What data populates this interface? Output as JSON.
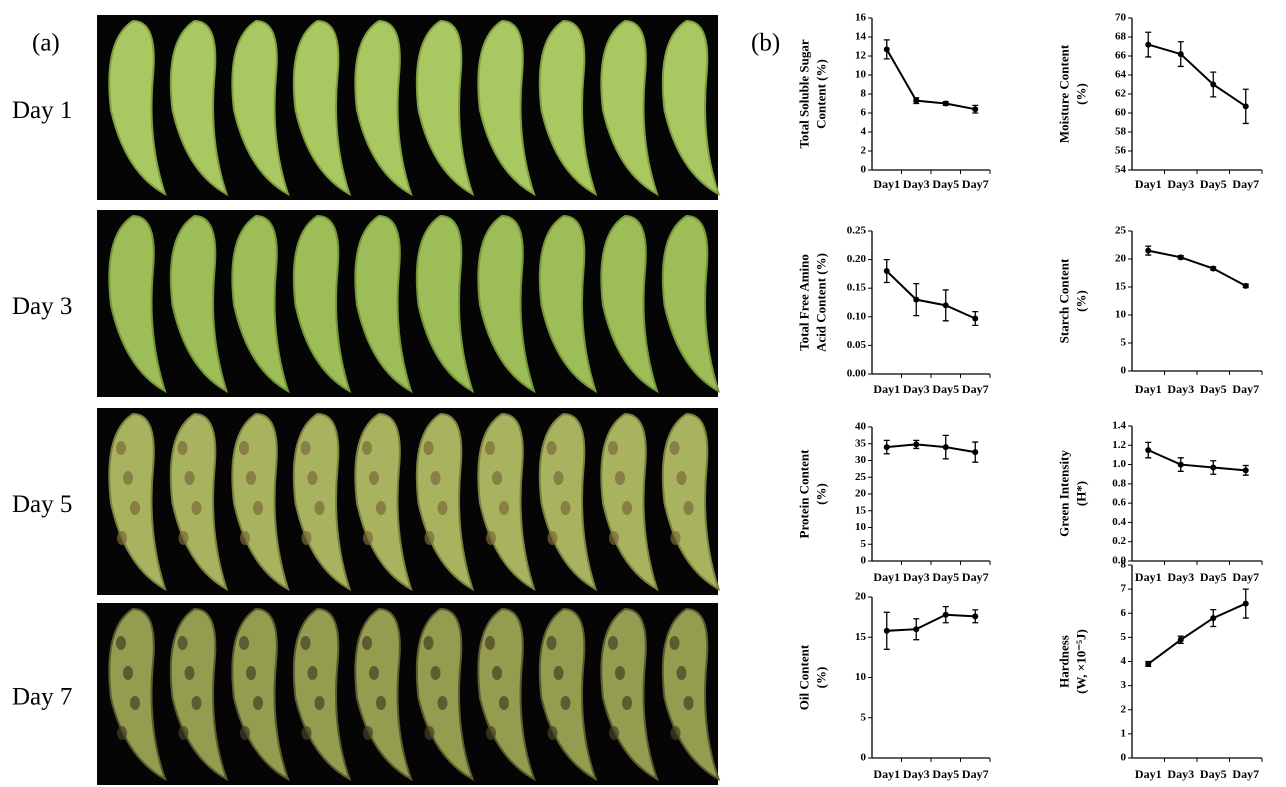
{
  "panel_a": {
    "label": "(a)",
    "rows": [
      "Day 1",
      "Day 3",
      "Day 5",
      "Day 7"
    ]
  },
  "panel_b": {
    "label": "(b)"
  },
  "chart_data": [
    {
      "type": "line",
      "y_label": [
        "Total Soluble Sugar",
        "Content (%)"
      ],
      "categories": [
        "Day1",
        "Day3",
        "Day5",
        "Day7"
      ],
      "values": [
        12.7,
        7.3,
        7.0,
        6.4
      ],
      "errors": [
        1.0,
        0.3,
        0.2,
        0.4
      ],
      "color": "#000000",
      "ylim": [
        0,
        16
      ],
      "yticks": [
        0,
        2,
        4,
        6,
        8,
        10,
        12,
        14,
        16
      ]
    },
    {
      "type": "line",
      "y_label": [
        "Moisture  Content",
        "(%)"
      ],
      "categories": [
        "Day1",
        "Day3",
        "Day5",
        "Day7"
      ],
      "values": [
        67.2,
        66.2,
        63.0,
        60.7
      ],
      "errors": [
        1.3,
        1.3,
        1.3,
        1.8
      ],
      "color": "#000000",
      "ylim": [
        54,
        70
      ],
      "yticks": [
        54,
        56,
        58,
        60,
        62,
        64,
        66,
        68,
        70
      ]
    },
    {
      "type": "line",
      "y_label": [
        "Total Free Amino",
        "Acid Content (%)"
      ],
      "categories": [
        "Day1",
        "Day3",
        "Day5",
        "Day7"
      ],
      "values": [
        0.18,
        0.13,
        0.12,
        0.097
      ],
      "errors": [
        0.02,
        0.028,
        0.027,
        0.012
      ],
      "color": "#000000",
      "ylim": [
        0,
        0.25
      ],
      "yticks": [
        {
          "value": 0,
          "label": "0.00"
        },
        0.05,
        {
          "value": 0.1,
          "label": "0.10"
        },
        0.15,
        {
          "value": 0.2,
          "label": "0.20"
        },
        0.25
      ]
    },
    {
      "type": "line",
      "y_label": [
        "Starch Content",
        "(%)"
      ],
      "categories": [
        "Day1",
        "Day3",
        "Day5",
        "Day7"
      ],
      "values": [
        21.5,
        20.3,
        18.3,
        15.2
      ],
      "errors": [
        0.8,
        0.3,
        0.3,
        0.3
      ],
      "color": "#000000",
      "ylim": [
        0,
        25
      ],
      "yticks": [
        0,
        5,
        10,
        15,
        20,
        25
      ]
    },
    {
      "type": "line",
      "y_label": [
        "Protein Content",
        "(%)"
      ],
      "categories": [
        "Day1",
        "Day3",
        "Day5",
        "Day7"
      ],
      "values": [
        34,
        34.8,
        34,
        32.5
      ],
      "errors": [
        2,
        1.2,
        3.5,
        3
      ],
      "color": "#000000",
      "ylim": [
        0,
        40
      ],
      "yticks": [
        0,
        5,
        10,
        15,
        20,
        25,
        30,
        35,
        40
      ]
    },
    {
      "type": "line",
      "y_label": [
        "Green Intensity",
        "(H*)"
      ],
      "categories": [
        "Day1",
        "Day3",
        "Day5",
        "Day7"
      ],
      "values": [
        1.15,
        1.0,
        0.97,
        0.94
      ],
      "errors": [
        0.08,
        0.07,
        0.07,
        0.05
      ],
      "color": "#000000",
      "ylim": [
        0,
        1.4
      ],
      "yticks": [
        {
          "value": 0,
          "label": "0.0"
        },
        0.2,
        0.4,
        0.6,
        0.8,
        {
          "value": 1,
          "label": "1.0"
        },
        1.2,
        1.4
      ]
    },
    {
      "type": "line",
      "y_label": [
        "Oil Content",
        "(%)"
      ],
      "categories": [
        "Day1",
        "Day3",
        "Day5",
        "Day7"
      ],
      "values": [
        15.8,
        16.0,
        17.8,
        17.6
      ],
      "errors": [
        2.3,
        1.3,
        1.0,
        0.8
      ],
      "color": "#000000",
      "ylim": [
        0,
        20
      ],
      "yticks": [
        0,
        5,
        10,
        15,
        20
      ]
    },
    {
      "type": "line",
      "y_label": [
        "Hardness",
        "(W, ×10⁻⁵J)"
      ],
      "categories": [
        "Day1",
        "Day3",
        "Day5",
        "Day7"
      ],
      "values": [
        3.9,
        4.9,
        5.8,
        6.4
      ],
      "errors": [
        0.1,
        0.15,
        0.35,
        0.6
      ],
      "color": "#000000",
      "ylim": [
        0,
        8
      ],
      "yticks": [
        0,
        1,
        2,
        3,
        4,
        5,
        6,
        7,
        8
      ]
    }
  ]
}
